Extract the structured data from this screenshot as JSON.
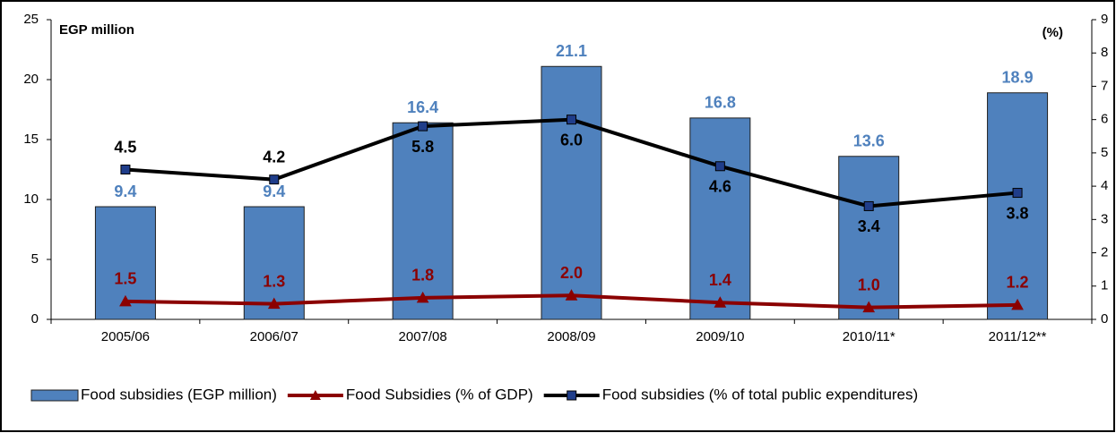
{
  "chart_data": {
    "type": "bar-line",
    "ylabel": "EGP million",
    "y2label": "(%)",
    "categories": [
      "2005/06",
      "2006/07",
      "2007/08",
      "2008/09",
      "2009/10",
      "2010/11*",
      "2011/12**"
    ],
    "series": [
      {
        "name": "Food subsidies (EGP million)",
        "type": "bar",
        "color": "#4f81bd",
        "label_color": "#4f81bd",
        "values": [
          9.4,
          9.4,
          16.4,
          21.1,
          16.8,
          13.6,
          18.9
        ],
        "value_labels": [
          "9.4",
          "9.4",
          "16.4",
          "21.1",
          "16.8",
          "13.6",
          "18.9"
        ]
      },
      {
        "name": "Food Subsidies (% of GDP)",
        "type": "line",
        "marker": "triangle",
        "color": "#8b0000",
        "label_color": "#8b0000",
        "values": [
          1.5,
          1.3,
          1.8,
          2.0,
          1.4,
          1.0,
          1.2
        ],
        "value_labels": [
          "1.5",
          "1.3",
          "1.8",
          "2.0",
          "1.4",
          "1.0",
          "1.2"
        ]
      },
      {
        "name": "Food subsidies (% of total public expenditures)",
        "type": "line",
        "marker": "square",
        "color": "#000000",
        "marker_color": "#1f3d8a",
        "label_color": "#000000",
        "axis": "y2",
        "values": [
          4.5,
          4.2,
          5.8,
          6.0,
          4.6,
          3.4,
          3.8
        ],
        "value_labels": [
          "4.5",
          "4.2",
          "5.8",
          "6.0",
          "4.6",
          "3.4",
          "3.8"
        ]
      }
    ],
    "ylim": [
      0,
      25
    ],
    "yticks": [
      0,
      5,
      10,
      15,
      20,
      25
    ],
    "y2lim": [
      0,
      9
    ],
    "y2ticks": [
      0,
      1,
      2,
      3,
      4,
      5,
      6,
      7,
      8,
      9
    ],
    "legend": "bottom"
  }
}
